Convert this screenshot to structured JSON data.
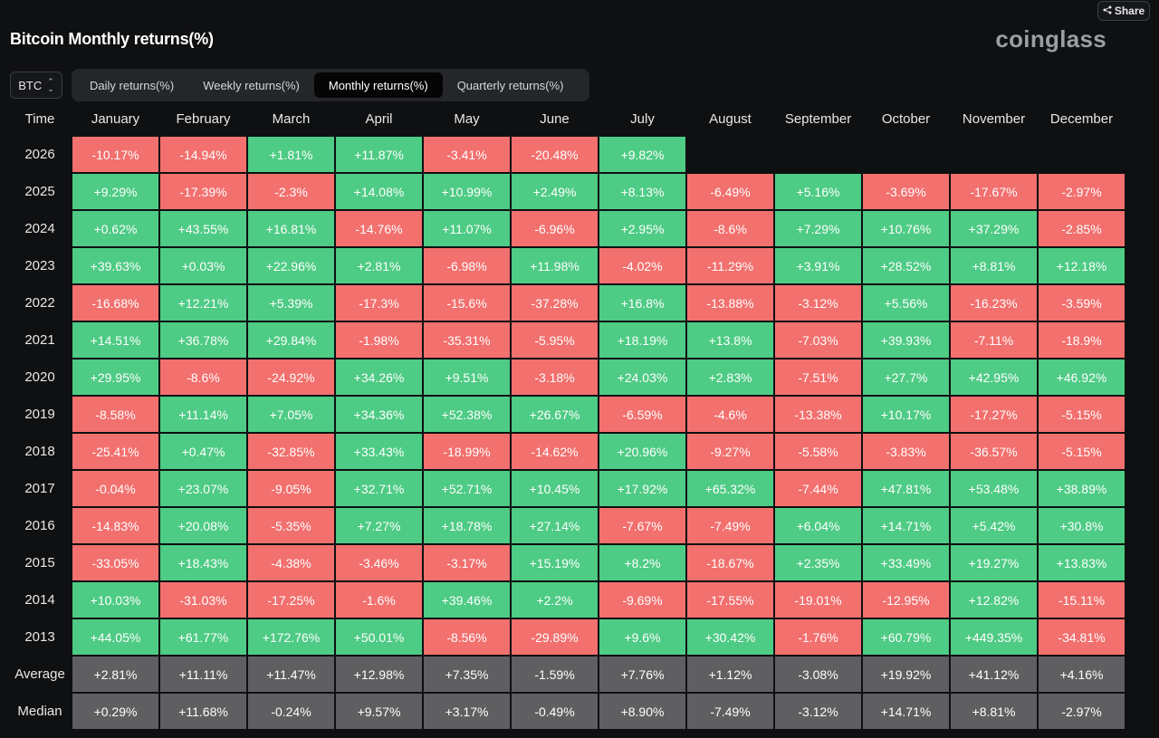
{
  "header": {
    "share_label": "Share",
    "title": "Bitcoin Monthly returns(%)",
    "logo": "coinglass"
  },
  "asset_select": {
    "value": "BTC"
  },
  "tabs": [
    {
      "label": "Daily returns(%)",
      "active": false
    },
    {
      "label": "Weekly returns(%)",
      "active": false
    },
    {
      "label": "Monthly returns(%)",
      "active": true
    },
    {
      "label": "Quarterly returns(%)",
      "active": false
    }
  ],
  "colors": {
    "positive": "#4ecb84",
    "negative": "#f2706e",
    "stat": "#5f5f61",
    "background": "#0f1012"
  },
  "table": {
    "corner_label": "Time",
    "months": [
      "January",
      "February",
      "March",
      "April",
      "May",
      "June",
      "July",
      "August",
      "September",
      "October",
      "November",
      "December"
    ],
    "rows": [
      {
        "label": "2026",
        "values": [
          "-10.17%",
          "-14.94%",
          "+1.81%",
          "+11.87%",
          "-3.41%",
          "-20.48%",
          "+9.82%",
          "",
          "",
          "",
          "",
          ""
        ]
      },
      {
        "label": "2025",
        "values": [
          "+9.29%",
          "-17.39%",
          "-2.3%",
          "+14.08%",
          "+10.99%",
          "+2.49%",
          "+8.13%",
          "-6.49%",
          "+5.16%",
          "-3.69%",
          "-17.67%",
          "-2.97%"
        ]
      },
      {
        "label": "2024",
        "values": [
          "+0.62%",
          "+43.55%",
          "+16.81%",
          "-14.76%",
          "+11.07%",
          "-6.96%",
          "+2.95%",
          "-8.6%",
          "+7.29%",
          "+10.76%",
          "+37.29%",
          "-2.85%"
        ]
      },
      {
        "label": "2023",
        "values": [
          "+39.63%",
          "+0.03%",
          "+22.96%",
          "+2.81%",
          "-6.98%",
          "+11.98%",
          "-4.02%",
          "-11.29%",
          "+3.91%",
          "+28.52%",
          "+8.81%",
          "+12.18%"
        ]
      },
      {
        "label": "2022",
        "values": [
          "-16.68%",
          "+12.21%",
          "+5.39%",
          "-17.3%",
          "-15.6%",
          "-37.28%",
          "+16.8%",
          "-13.88%",
          "-3.12%",
          "+5.56%",
          "-16.23%",
          "-3.59%"
        ]
      },
      {
        "label": "2021",
        "values": [
          "+14.51%",
          "+36.78%",
          "+29.84%",
          "-1.98%",
          "-35.31%",
          "-5.95%",
          "+18.19%",
          "+13.8%",
          "-7.03%",
          "+39.93%",
          "-7.11%",
          "-18.9%"
        ]
      },
      {
        "label": "2020",
        "values": [
          "+29.95%",
          "-8.6%",
          "-24.92%",
          "+34.26%",
          "+9.51%",
          "-3.18%",
          "+24.03%",
          "+2.83%",
          "-7.51%",
          "+27.7%",
          "+42.95%",
          "+46.92%"
        ]
      },
      {
        "label": "2019",
        "values": [
          "-8.58%",
          "+11.14%",
          "+7.05%",
          "+34.36%",
          "+52.38%",
          "+26.67%",
          "-6.59%",
          "-4.6%",
          "-13.38%",
          "+10.17%",
          "-17.27%",
          "-5.15%"
        ]
      },
      {
        "label": "2018",
        "values": [
          "-25.41%",
          "+0.47%",
          "-32.85%",
          "+33.43%",
          "-18.99%",
          "-14.62%",
          "+20.96%",
          "-9.27%",
          "-5.58%",
          "-3.83%",
          "-36.57%",
          "-5.15%"
        ]
      },
      {
        "label": "2017",
        "values": [
          "-0.04%",
          "+23.07%",
          "-9.05%",
          "+32.71%",
          "+52.71%",
          "+10.45%",
          "+17.92%",
          "+65.32%",
          "-7.44%",
          "+47.81%",
          "+53.48%",
          "+38.89%"
        ]
      },
      {
        "label": "2016",
        "values": [
          "-14.83%",
          "+20.08%",
          "-5.35%",
          "+7.27%",
          "+18.78%",
          "+27.14%",
          "-7.67%",
          "-7.49%",
          "+6.04%",
          "+14.71%",
          "+5.42%",
          "+30.8%"
        ]
      },
      {
        "label": "2015",
        "values": [
          "-33.05%",
          "+18.43%",
          "-4.38%",
          "-3.46%",
          "-3.17%",
          "+15.19%",
          "+8.2%",
          "-18.67%",
          "+2.35%",
          "+33.49%",
          "+19.27%",
          "+13.83%"
        ]
      },
      {
        "label": "2014",
        "values": [
          "+10.03%",
          "-31.03%",
          "-17.25%",
          "-1.6%",
          "+39.46%",
          "+2.2%",
          "-9.69%",
          "-17.55%",
          "-19.01%",
          "-12.95%",
          "+12.82%",
          "-15.11%"
        ]
      },
      {
        "label": "2013",
        "values": [
          "+44.05%",
          "+61.77%",
          "+172.76%",
          "+50.01%",
          "-8.56%",
          "-29.89%",
          "+9.6%",
          "+30.42%",
          "-1.76%",
          "+60.79%",
          "+449.35%",
          "-34.81%"
        ]
      }
    ],
    "stats": [
      {
        "label": "Average",
        "values": [
          "+2.81%",
          "+11.11%",
          "+11.47%",
          "+12.98%",
          "+7.35%",
          "-1.59%",
          "+7.76%",
          "+1.12%",
          "-3.08%",
          "+19.92%",
          "+41.12%",
          "+4.16%"
        ]
      },
      {
        "label": "Median",
        "values": [
          "+0.29%",
          "+11.68%",
          "-0.24%",
          "+9.57%",
          "+3.17%",
          "-0.49%",
          "+8.90%",
          "-7.49%",
          "-3.12%",
          "+14.71%",
          "+8.81%",
          "-2.97%"
        ]
      }
    ]
  }
}
